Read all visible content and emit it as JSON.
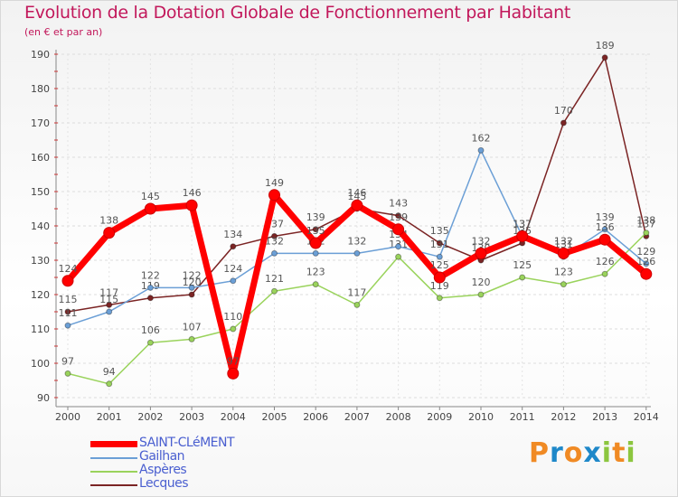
{
  "title": "Evolution de la Dotation Globale de Fonctionnement par Habitant",
  "subtitle": "(en € et par an)",
  "logo": {
    "letters": [
      "P",
      "r",
      "o",
      "x",
      "i",
      "t",
      "i"
    ],
    "colors": [
      "#f08a24",
      "#1e88c9",
      "#f08a24",
      "#1e88c9",
      "#8cc63f",
      "#f08a24",
      "#8cc63f"
    ]
  },
  "chart_data": {
    "type": "line",
    "title": "Evolution de la Dotation Globale de Fonctionnement par Habitant",
    "subtitle": "(en € et par an)",
    "xlabel": "",
    "ylabel": "",
    "ylim": [
      90,
      190
    ],
    "yticks": [
      90,
      100,
      110,
      120,
      130,
      140,
      150,
      160,
      170,
      180,
      190
    ],
    "categories": [
      "2000",
      "2001",
      "2002",
      "2003",
      "2004",
      "2005",
      "2006",
      "2007",
      "2008",
      "2009",
      "2010",
      "2011",
      "2012",
      "2013",
      "2014"
    ],
    "legend_position": "bottom-left",
    "series": [
      {
        "name": "Lecques",
        "color": "#7b2424",
        "values": [
          115,
          117,
          119,
          120,
          134,
          137,
          139,
          145,
          143,
          135,
          130,
          135,
          170,
          189,
          137
        ]
      },
      {
        "name": "Aspères",
        "color": "#9ad35c",
        "values": [
          97,
          94,
          106,
          107,
          110,
          121,
          123,
          117,
          131,
          119,
          120,
          125,
          123,
          126,
          138
        ]
      },
      {
        "name": "Gailhan",
        "color": "#6b9fd6",
        "values": [
          111,
          115,
          122,
          122,
          124,
          132,
          132,
          132,
          134,
          131,
          162,
          137,
          131,
          139,
          129
        ]
      },
      {
        "name": "SAINT-CLéMENT",
        "color": "#ff0000",
        "values": [
          124,
          138,
          145,
          146,
          97,
          149,
          135,
          146,
          139,
          125,
          132,
          137,
          132,
          136,
          126
        ]
      }
    ]
  }
}
